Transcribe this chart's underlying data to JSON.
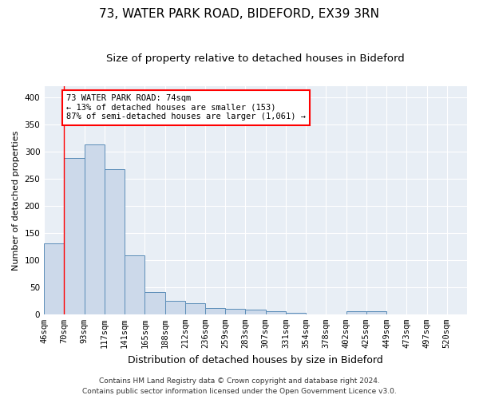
{
  "title1": "73, WATER PARK ROAD, BIDEFORD, EX39 3RN",
  "title2": "Size of property relative to detached houses in Bideford",
  "xlabel": "Distribution of detached houses by size in Bideford",
  "ylabel": "Number of detached properties",
  "bar_color": "#ccd9ea",
  "bar_edge_color": "#5b8db8",
  "categories": [
    "46sqm",
    "70sqm",
    "93sqm",
    "117sqm",
    "141sqm",
    "165sqm",
    "188sqm",
    "212sqm",
    "236sqm",
    "259sqm",
    "283sqm",
    "307sqm",
    "331sqm",
    "354sqm",
    "378sqm",
    "402sqm",
    "425sqm",
    "449sqm",
    "473sqm",
    "497sqm",
    "520sqm"
  ],
  "values": [
    130,
    288,
    313,
    267,
    108,
    41,
    25,
    21,
    12,
    10,
    8,
    5,
    3,
    0,
    0,
    5,
    5,
    0,
    0,
    0,
    0
  ],
  "ylim": [
    0,
    420
  ],
  "yticks": [
    0,
    50,
    100,
    150,
    200,
    250,
    300,
    350,
    400
  ],
  "annotation_lines": [
    "73 WATER PARK ROAD: 74sqm",
    "← 13% of detached houses are smaller (153)",
    "87% of semi-detached houses are larger (1,061) →"
  ],
  "footnote1": "Contains HM Land Registry data © Crown copyright and database right 2024.",
  "footnote2": "Contains public sector information licensed under the Open Government Licence v3.0.",
  "bg_color": "#e8eef5",
  "grid_color": "#ffffff",
  "title1_fontsize": 11,
  "title2_fontsize": 9.5,
  "xlabel_fontsize": 9,
  "ylabel_fontsize": 8,
  "tick_fontsize": 7.5,
  "footnote_fontsize": 6.5
}
